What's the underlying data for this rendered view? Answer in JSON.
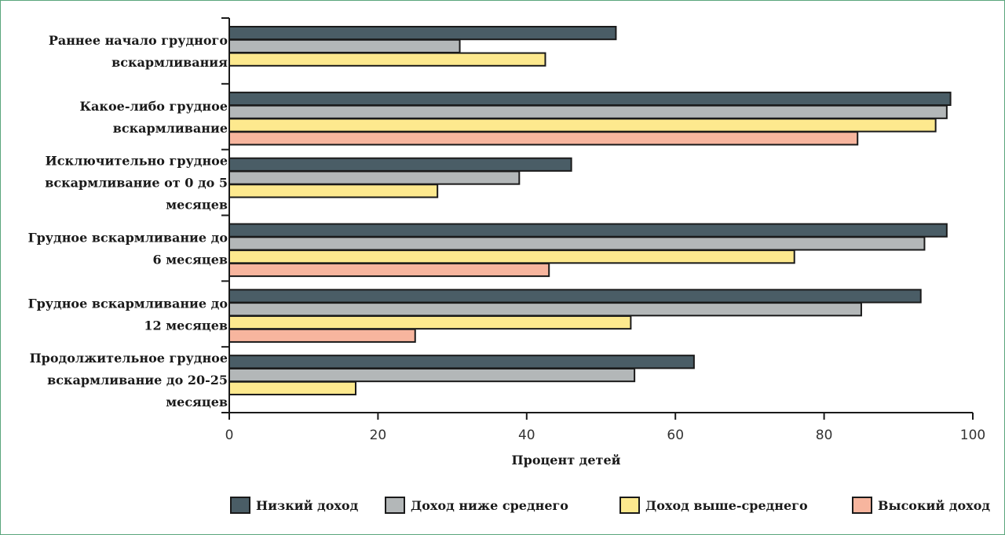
{
  "chart_data": {
    "type": "bar",
    "orientation": "horizontal",
    "title": "",
    "xlabel": "Процент детей",
    "ylabel": "",
    "xlim": [
      0,
      100
    ],
    "xticks": [
      0,
      20,
      40,
      60,
      80,
      100
    ],
    "grid": false,
    "legend_position": "bottom",
    "categories": [
      [
        "Раннее начало грудного",
        "вскармливания"
      ],
      [
        "Какое-либо грудное",
        "вскармливание"
      ],
      [
        "Исключительно грудное",
        "вскармливание от 0 до 5",
        "месяцев"
      ],
      [
        "Грудное вскармливание до",
        "6 месяцев"
      ],
      [
        "Грудное вскармливание до",
        "12 месяцев"
      ],
      [
        "Продолжительное грудное",
        "вскармливание до 20-25",
        "месяцев"
      ]
    ],
    "series": [
      {
        "name": "Низкий доход",
        "color": "#4a5d66",
        "values": [
          52,
          97,
          46,
          96.5,
          93,
          62.5
        ]
      },
      {
        "name": "Доход ниже среднего",
        "color": "#b3b7b8",
        "values": [
          31,
          96.5,
          39,
          93.5,
          85,
          54.5
        ]
      },
      {
        "name": "Доход выше-среднего",
        "color": "#fde98e",
        "values": [
          42.5,
          95,
          28,
          76,
          54,
          17
        ]
      },
      {
        "name": "Высокий доход",
        "color": "#f7b59e",
        "values": [
          null,
          84.5,
          null,
          43,
          25,
          null
        ]
      }
    ]
  }
}
